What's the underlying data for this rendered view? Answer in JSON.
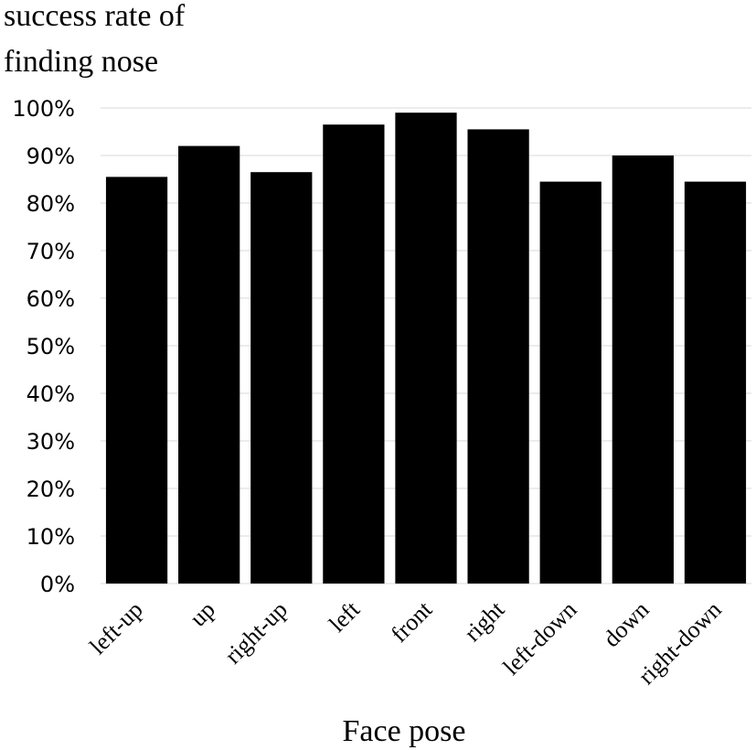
{
  "chart_data": {
    "type": "bar",
    "ylabel_lines": [
      "success rate of",
      "finding nose"
    ],
    "xlabel": "Face pose",
    "categories": [
      "left-up",
      "up",
      "right-up",
      "left",
      "front",
      "right",
      "left-down",
      "down",
      "right-down"
    ],
    "values": [
      85.5,
      92,
      86.5,
      96.5,
      99,
      95.5,
      84.5,
      90,
      84.5
    ],
    "ylim": [
      0,
      100
    ],
    "yticks": [
      "0%",
      "10%",
      "20%",
      "30%",
      "40%",
      "50%",
      "60%",
      "70%",
      "80%",
      "90%",
      "100%"
    ],
    "grid": true,
    "colors": {
      "bar": "#000000",
      "grid": "#d9d9d9"
    }
  }
}
